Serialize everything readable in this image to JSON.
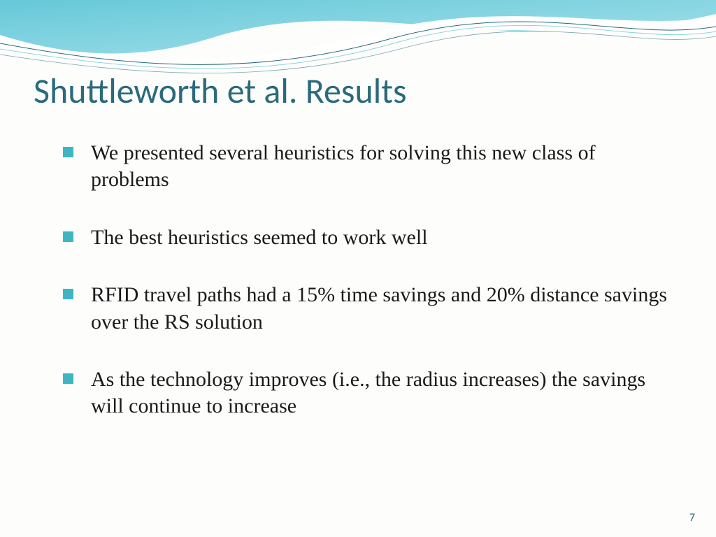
{
  "slide": {
    "title": "Shuttleworth et al. Results",
    "title_color": "#2a6a7c",
    "title_fontsize": 50,
    "bullets": [
      "We presented several heuristics for solving this new class of problems",
      "The best heuristics seemed to work well",
      "RFID travel paths had a 15% time savings and 20% distance savings over the RS solution",
      "As the technology improves (i.e., the radius increases) the savings will continue to increase"
    ],
    "bullet_color": "#3fb5c4",
    "bullet_text_color": "#1a1a1a",
    "bullet_fontsize": 30,
    "page_number": "7",
    "page_number_color": "#2a6a7c",
    "background_color": "#fdfdfc",
    "wave": {
      "gradient_start": "#66c8d8",
      "gradient_end": "#a8e2ec",
      "stroke_dark": "#2a6a7c",
      "stroke_light": "#8fd4de"
    }
  }
}
